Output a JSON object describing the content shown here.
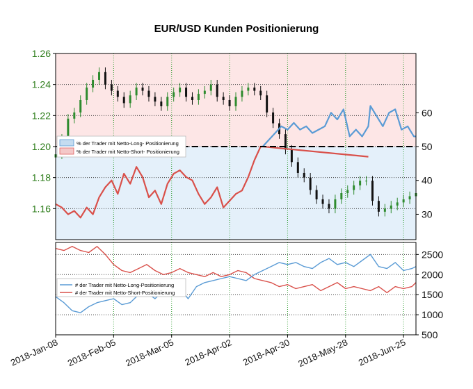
{
  "chart_data": {
    "title": "EUR/USD Kunden Positionierung",
    "x_ticks": [
      "2018-Jan-08",
      "2018-Feb-05",
      "2018-Mar-05",
      "2018-Apr-02",
      "2018-Apr-30",
      "2018-May-28",
      "2018-Jun-25"
    ],
    "top_panel": {
      "type": "line",
      "left_axis": {
        "ticks": [
          1.26,
          1.24,
          1.22,
          1.2,
          1.18,
          1.16
        ],
        "range": [
          1.14,
          1.26
        ],
        "tick_color": "#2e7d1b"
      },
      "right_axis": {
        "ticks": [
          60,
          50,
          40,
          30
        ],
        "range": [
          22.5,
          77.5
        ]
      },
      "reference_line": 50,
      "legend": [
        {
          "name": "% der Trader mit Netto-Long- Positionierung",
          "color": "#5a9bd5"
        },
        {
          "name": "% der Trader mit Netto-Short- Positionierung",
          "color": "#e06060"
        }
      ],
      "price_series": {
        "name": "EUR/USD",
        "up_color": "#2e8b2e",
        "down_color": "#111111",
        "x": [
          0,
          3,
          6,
          9,
          12,
          15,
          18,
          21,
          24,
          27,
          30,
          33,
          36,
          39,
          42,
          45,
          48,
          51,
          54,
          57,
          60,
          63,
          66,
          69,
          72,
          75,
          78,
          81,
          84,
          87,
          90,
          93,
          96,
          99,
          102,
          105,
          108,
          111,
          114,
          117,
          120,
          123,
          126,
          129,
          132,
          135,
          138,
          141,
          144,
          147,
          150,
          153,
          156,
          159,
          162,
          165,
          168,
          171,
          174
        ],
        "close": [
          1.195,
          1.205,
          1.218,
          1.222,
          1.23,
          1.238,
          1.243,
          1.248,
          1.24,
          1.236,
          1.232,
          1.228,
          1.233,
          1.238,
          1.236,
          1.232,
          1.229,
          1.226,
          1.232,
          1.235,
          1.238,
          1.232,
          1.23,
          1.234,
          1.236,
          1.24,
          1.232,
          1.23,
          1.226,
          1.232,
          1.236,
          1.238,
          1.236,
          1.233,
          1.222,
          1.215,
          1.208,
          1.198,
          1.19,
          1.183,
          1.18,
          1.172,
          1.166,
          1.163,
          1.16,
          1.166,
          1.17,
          1.172,
          1.175,
          1.178,
          1.178,
          1.165,
          1.158,
          1.16,
          1.162,
          1.164,
          1.166,
          1.168,
          1.17
        ]
      },
      "long_series": {
        "name": "% der Trader mit Netto-Long- Positionierung",
        "color": "#5a9bd5",
        "x": [
          100,
          103,
          106,
          109,
          112,
          115,
          118,
          121,
          124,
          127,
          130,
          133,
          136,
          139,
          142,
          145,
          148,
          151,
          152,
          155,
          158,
          161,
          164,
          167,
          170,
          173,
          174
        ],
        "values": [
          50,
          52,
          54,
          56,
          55,
          57,
          55,
          56,
          54,
          55,
          56,
          60,
          58,
          61,
          53,
          55,
          53,
          56,
          62,
          59,
          56,
          60,
          61,
          55,
          56,
          53,
          53
        ]
      },
      "short_series": {
        "name": "% der Trader mit Netto-Short- Positionierung",
        "color": "#d9504a",
        "x": [
          0,
          3,
          6,
          9,
          12,
          15,
          18,
          21,
          24,
          27,
          30,
          33,
          36,
          39,
          42,
          45,
          48,
          51,
          54,
          57,
          60,
          63,
          66,
          69,
          72,
          75,
          78,
          81,
          84,
          87,
          90,
          93,
          96,
          99,
          100,
          151
        ],
        "values": [
          33,
          32,
          30,
          31,
          29,
          32,
          30,
          35,
          38,
          40,
          36,
          42,
          39,
          44,
          41,
          35,
          37,
          33,
          39,
          42,
          43,
          41,
          40,
          36,
          33,
          35,
          38,
          32,
          34,
          36,
          37,
          41,
          46,
          50,
          50,
          47
        ]
      }
    },
    "bottom_panel": {
      "type": "line",
      "right_axis": {
        "ticks": [
          2500,
          2000,
          1500,
          1000,
          500
        ],
        "range": [
          500,
          2800
        ]
      },
      "legend": [
        {
          "name": "# der Trader mit Netto-Long-Positionierung",
          "color": "#5a9bd5"
        },
        {
          "name": "# der Trader mit Netto-Short-Positionierung",
          "color": "#d9504a"
        }
      ],
      "long_series": {
        "name": "# der Trader mit Netto-Long-Positionierung",
        "color": "#5a9bd5",
        "x": [
          0,
          4,
          8,
          12,
          16,
          20,
          24,
          28,
          32,
          36,
          40,
          44,
          48,
          52,
          56,
          60,
          64,
          68,
          72,
          76,
          80,
          84,
          88,
          92,
          96,
          100,
          104,
          108,
          112,
          116,
          120,
          124,
          128,
          132,
          136,
          140,
          144,
          148,
          152,
          156,
          160,
          164,
          168,
          172,
          174
        ],
        "values": [
          1450,
          1300,
          1100,
          1050,
          1200,
          1300,
          1350,
          1400,
          1250,
          1300,
          1500,
          1550,
          1400,
          1600,
          1500,
          1650,
          1400,
          1700,
          1800,
          1850,
          1900,
          1950,
          1900,
          1850,
          2000,
          2100,
          2200,
          2300,
          2250,
          2300,
          2200,
          2150,
          2300,
          2400,
          2250,
          2300,
          2200,
          2350,
          2500,
          2200,
          2150,
          2300,
          2100,
          2150,
          2200
        ]
      },
      "short_series": {
        "name": "# der Trader mit Netto-Short-Positionierung",
        "color": "#d9504a",
        "x": [
          0,
          4,
          8,
          12,
          16,
          20,
          24,
          28,
          32,
          36,
          40,
          44,
          48,
          52,
          56,
          60,
          64,
          68,
          72,
          76,
          80,
          84,
          88,
          92,
          96,
          100,
          104,
          108,
          112,
          116,
          120,
          124,
          128,
          132,
          136,
          140,
          144,
          148,
          152,
          156,
          160,
          164,
          168,
          172,
          174
        ],
        "values": [
          2650,
          2600,
          2700,
          2600,
          2550,
          2700,
          2500,
          2250,
          2100,
          2050,
          2150,
          2250,
          2100,
          2000,
          2050,
          2150,
          2050,
          2000,
          1950,
          2050,
          1950,
          2000,
          2100,
          2050,
          1900,
          1850,
          1800,
          1700,
          1750,
          1650,
          1700,
          1750,
          1600,
          1700,
          1800,
          1650,
          1700,
          1650,
          1600,
          1700,
          1550,
          1700,
          1650,
          1700,
          1800
        ]
      }
    }
  }
}
